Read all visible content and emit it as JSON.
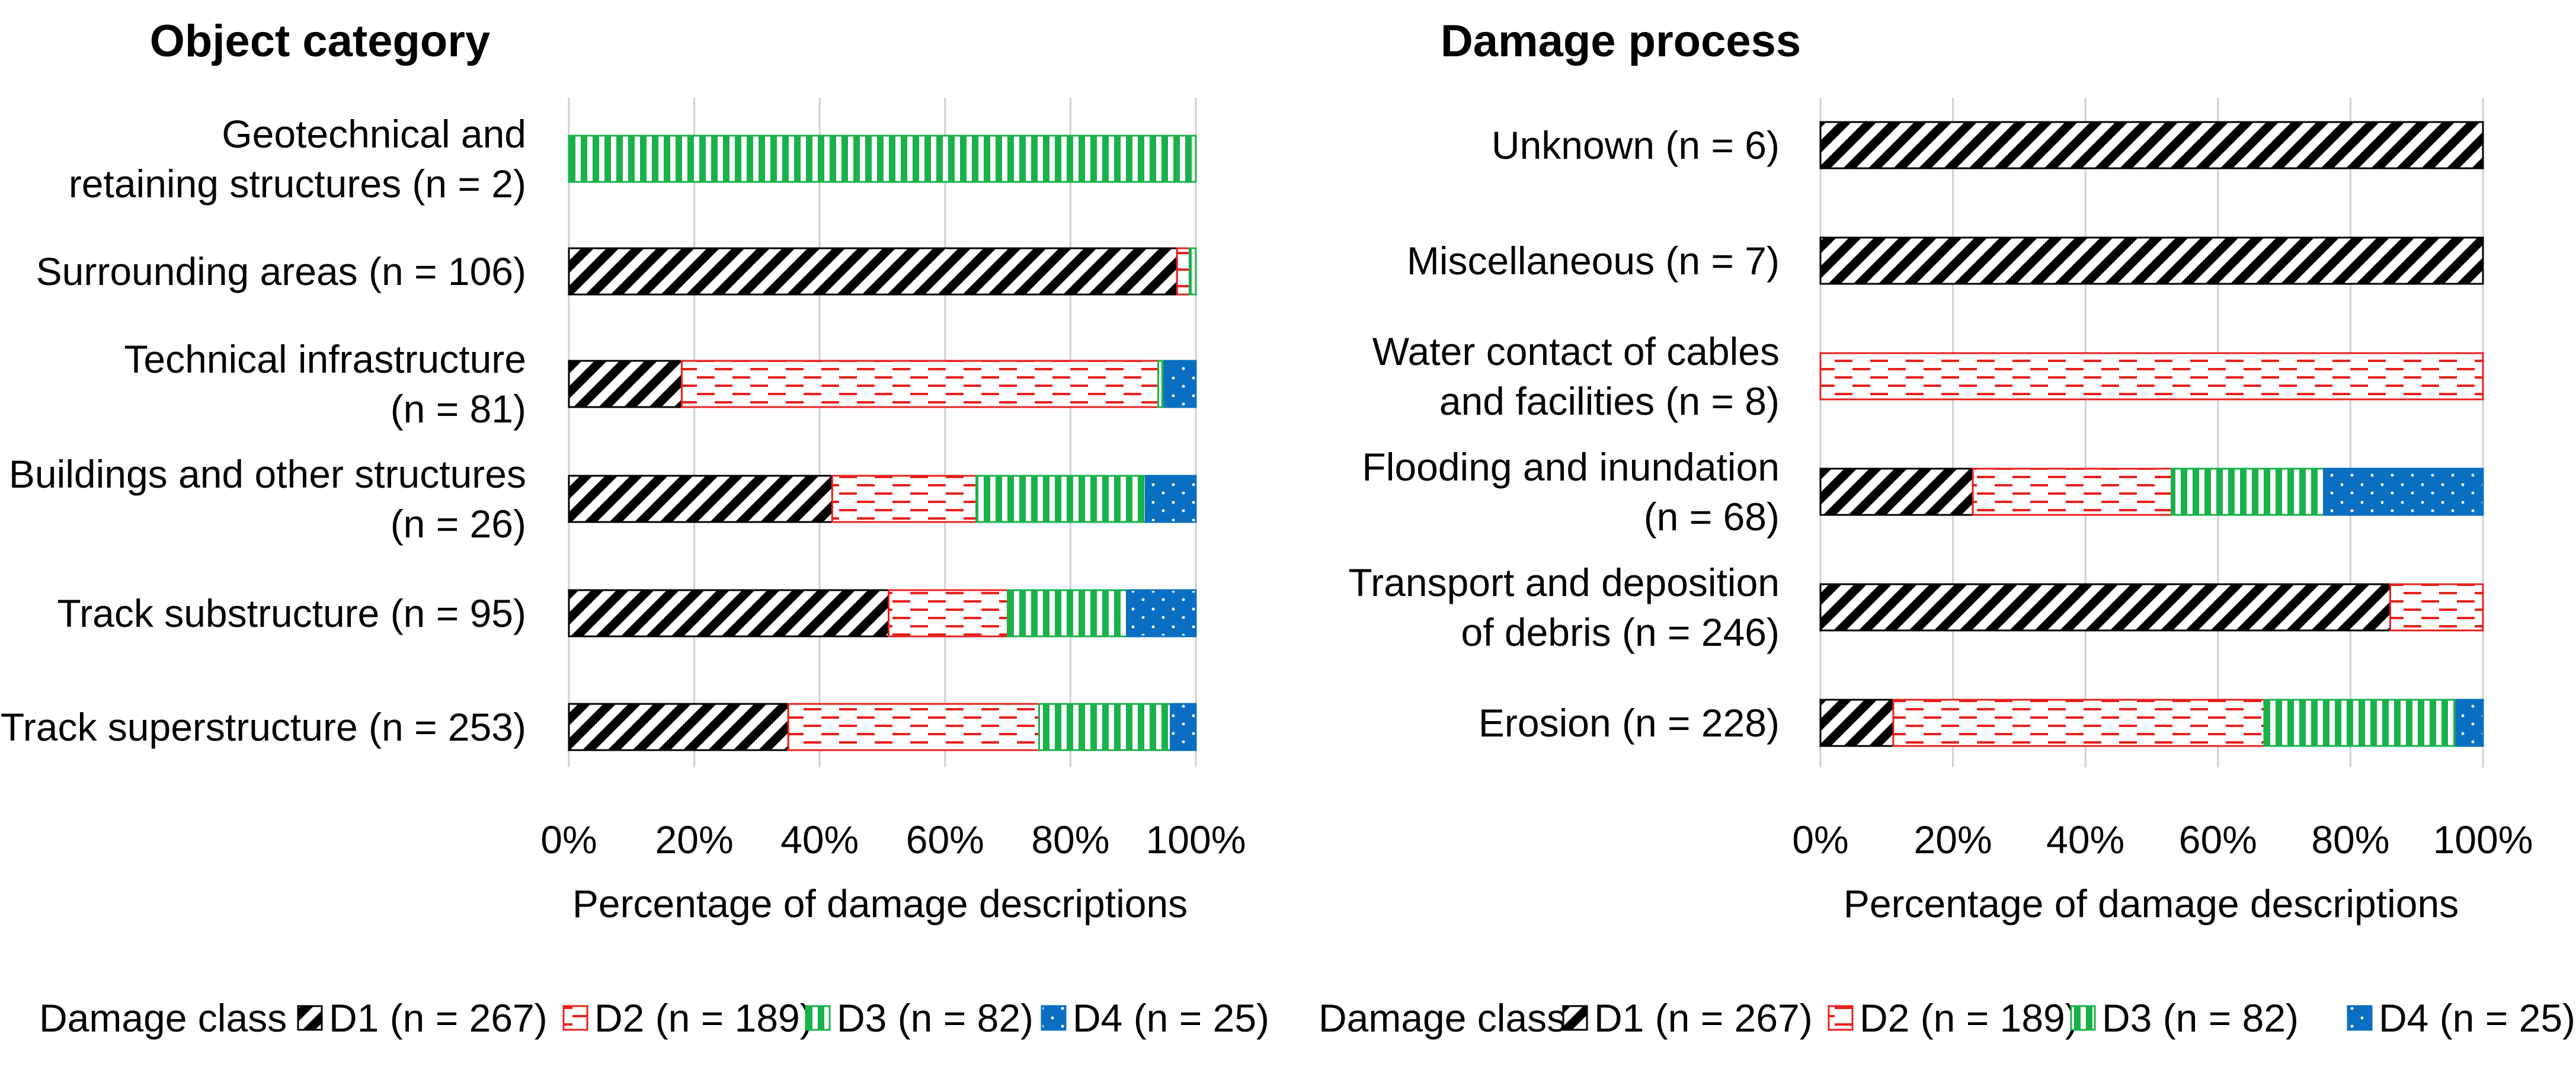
{
  "legend": {
    "label": "Damage class",
    "entries": [
      "D1 (n = 267)",
      "D2 (n = 189)",
      "D3 (n = 82)",
      "D4 (n = 25)"
    ]
  },
  "colors": {
    "D1": "#000000",
    "D2": "#e8201c",
    "D3": "#18b24a",
    "D4": "#0a6fc2",
    "grid": "#d0d0d0"
  },
  "chart_data": [
    {
      "type": "bar",
      "stacked": true,
      "orientation": "horizontal",
      "title": "Object category",
      "xlabel": "Percentage of damage descriptions",
      "ylabel": "",
      "xlim": [
        0,
        100
      ],
      "x_ticks": [
        "0%",
        "20%",
        "40%",
        "60%",
        "80%",
        "100%"
      ],
      "categories": [
        [
          "Geotechnical and",
          "retaining structures (n = 2)"
        ],
        [
          "Surrounding areas (n = 106)"
        ],
        [
          "Technical infrastructure",
          "(n = 81)"
        ],
        [
          "Buildings and other structures",
          "(n = 26)"
        ],
        [
          "Track substructure (n = 95)"
        ],
        [
          "Track superstructure (n = 253)"
        ]
      ],
      "series": [
        {
          "name": "D1 (n = 267)",
          "values": [
            0,
            97,
            18,
            42,
            51,
            35
          ]
        },
        {
          "name": "D2 (n = 189)",
          "values": [
            0,
            2,
            76,
            23,
            19,
            40
          ]
        },
        {
          "name": "D3 (n = 82)",
          "values": [
            100,
            1,
            1,
            27,
            19,
            21
          ]
        },
        {
          "name": "D4 (n = 25)",
          "values": [
            0,
            0,
            5,
            8,
            11,
            4
          ]
        }
      ]
    },
    {
      "type": "bar",
      "stacked": true,
      "orientation": "horizontal",
      "title": "Damage process",
      "xlabel": "Percentage of damage descriptions",
      "ylabel": "",
      "xlim": [
        0,
        100
      ],
      "x_ticks": [
        "0%",
        "20%",
        "40%",
        "60%",
        "80%",
        "100%"
      ],
      "categories": [
        [
          "Unknown (n = 6)"
        ],
        [
          "Miscellaneous (n = 7)"
        ],
        [
          "Water contact of cables",
          "and facilities (n = 8)"
        ],
        [
          "Flooding and inundation",
          "(n = 68)"
        ],
        [
          "Transport and deposition",
          "of debris (n = 246)"
        ],
        [
          "Erosion (n = 228)"
        ]
      ],
      "series": [
        {
          "name": "D1 (n = 267)",
          "values": [
            100,
            100,
            0,
            23,
            86,
            11
          ]
        },
        {
          "name": "D2 (n = 189)",
          "values": [
            0,
            0,
            100,
            30,
            14,
            56
          ]
        },
        {
          "name": "D3 (n = 82)",
          "values": [
            0,
            0,
            0,
            23,
            0,
            29
          ]
        },
        {
          "name": "D4 (n = 25)",
          "values": [
            0,
            0,
            0,
            24,
            0,
            4
          ]
        }
      ]
    }
  ]
}
